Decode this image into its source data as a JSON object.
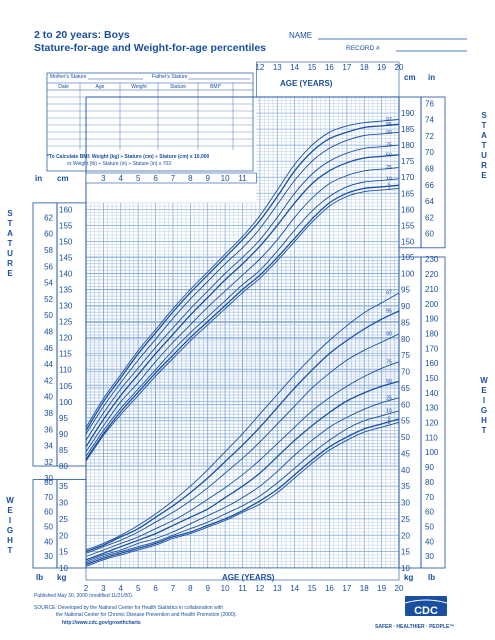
{
  "header": {
    "title": "2 to 20 years: Boys",
    "subtitle": "Stature-for-age and Weight-for-age percentiles",
    "name_label": "NAME",
    "record_label": "RECORD #"
  },
  "form": {
    "mother_label": "Mother's Stature",
    "father_label": "Father's Stature",
    "columns": [
      "Date",
      "Age",
      "Weight",
      "Stature",
      "BMI*"
    ],
    "bmi_note_1": "*To Calculate BMI: Weight (kg) ÷ Stature (cm) ÷ Stature (cm) x 10,000",
    "bmi_note_2": "or Weight (lb) ÷ Stature (in) ÷ Stature (in) x 703"
  },
  "labels": {
    "age_years": "AGE (YEARS)",
    "stature_vertical": "STATURE",
    "weight_vertical": "WEIGHT",
    "in": "in",
    "cm": "cm",
    "lb": "lb",
    "kg": "kg"
  },
  "footer": {
    "published": "Published May 30, 2000 (modified 11/21/00).",
    "source_1": "SOURCE: Developed by the National Center for Health Statistics in collaboration with",
    "source_2": "the National Center for Chronic Disease Prevention and Health Promotion (2000).",
    "url": "http://www.cdc.gov/growthcharts",
    "logo": "CDC",
    "tagline": "SAFER · HEALTHIER · PEOPLE™"
  },
  "colors": {
    "ink": "#1a4fa0",
    "grid": "#7fa6d8",
    "paper": "#ffffff"
  },
  "chart_data": [
    {
      "type": "line",
      "title": "Stature-for-age",
      "x": [
        2,
        3,
        4,
        5,
        6,
        7,
        8,
        9,
        10,
        11,
        12,
        13,
        14,
        15,
        16,
        17,
        18,
        19,
        20
      ],
      "xlim": [
        2,
        20
      ],
      "ylim": [
        80,
        195
      ],
      "ylabel": "cm",
      "series": [
        {
          "name": "97",
          "values": [
            92,
            101,
            108.5,
            116,
            122.5,
            129,
            135,
            140.5,
            146,
            151.5,
            158,
            166,
            174,
            180,
            184,
            186,
            187,
            187.5,
            188
          ]
        },
        {
          "name": "95",
          "values": [
            91,
            100,
            107.5,
            115,
            121.5,
            128,
            134,
            139.5,
            145,
            150.5,
            156.5,
            164,
            172,
            178,
            182,
            184,
            185.5,
            186,
            186.5
          ]
        },
        {
          "name": "90",
          "values": [
            90,
            98.5,
            106,
            113,
            119.5,
            126,
            132,
            137.5,
            143,
            148,
            154,
            161.5,
            169,
            175,
            179,
            181.5,
            183,
            183.5,
            184
          ]
        },
        {
          "name": "75",
          "values": [
            88,
            96.5,
            104,
            110.5,
            117,
            123,
            129,
            134.5,
            140,
            145,
            150.5,
            157.5,
            165,
            171,
            175,
            177.5,
            179,
            179.5,
            180
          ]
        },
        {
          "name": "50",
          "values": [
            86,
            94.5,
            102,
            108.5,
            115,
            121,
            127,
            132.5,
            138,
            143,
            148.5,
            155,
            162,
            168,
            172,
            174.5,
            176,
            176.5,
            177
          ]
        },
        {
          "name": "25",
          "values": [
            84.5,
            92.5,
            100,
            106,
            112.5,
            118.5,
            124,
            129.5,
            134.5,
            139.5,
            144.5,
            150.5,
            157.5,
            163.5,
            168,
            170.5,
            172,
            172.5,
            173
          ]
        },
        {
          "name": "10",
          "values": [
            83,
            91,
            98,
            104,
            110,
            116,
            121.5,
            126.5,
            131.5,
            136.5,
            141,
            147,
            153.5,
            159.5,
            164,
            167,
            168.5,
            169,
            169.5
          ]
        },
        {
          "name": "5",
          "values": [
            82,
            90,
            97,
            103,
            109,
            114.5,
            120,
            125,
            130,
            135,
            139.5,
            145,
            151,
            157,
            162,
            165,
            166.5,
            167,
            167.5
          ]
        },
        {
          "name": "3",
          "values": [
            81.5,
            89.5,
            96,
            102,
            108,
            113.5,
            119,
            124,
            129,
            134,
            138.5,
            144,
            150,
            156,
            161,
            164,
            165.5,
            166,
            166.5
          ]
        }
      ]
    },
    {
      "type": "line",
      "title": "Weight-for-age",
      "x": [
        2,
        3,
        4,
        5,
        6,
        7,
        8,
        9,
        10,
        11,
        12,
        13,
        14,
        15,
        16,
        17,
        18,
        19,
        20
      ],
      "xlim": [
        2,
        20
      ],
      "ylim": [
        10,
        105
      ],
      "ylabel": "kg",
      "series": [
        {
          "name": "97",
          "values": [
            15.5,
            17.5,
            20,
            23,
            26.5,
            30.5,
            35,
            40,
            45.5,
            51,
            57,
            63,
            69,
            74.5,
            79.5,
            84,
            88,
            91,
            94
          ]
        },
        {
          "name": "95",
          "values": [
            15,
            17,
            19.5,
            22,
            25.5,
            29,
            33,
            37.5,
            42.5,
            47.5,
            53,
            59,
            65,
            70.5,
            75.5,
            79.5,
            83,
            86,
            88.5
          ]
        },
        {
          "name": "90",
          "values": [
            14.5,
            16.5,
            18.5,
            21,
            24,
            27,
            30.5,
            34.5,
            39,
            43.5,
            48.5,
            54,
            59.5,
            65,
            69.5,
            73.5,
            76.5,
            79,
            81.5
          ]
        },
        {
          "name": "75",
          "values": [
            13.5,
            15.5,
            17.5,
            19.5,
            22,
            24.5,
            27.5,
            31,
            34.5,
            38.5,
            43,
            48,
            53,
            58,
            62,
            65.5,
            68.5,
            71,
            73
          ]
        },
        {
          "name": "50",
          "values": [
            12.5,
            14.5,
            16.5,
            18.5,
            20.5,
            23,
            25.5,
            28,
            31.5,
            35,
            39,
            44,
            49,
            53.5,
            57.5,
            61,
            63.5,
            65.5,
            67
          ]
        },
        {
          "name": "25",
          "values": [
            12,
            14,
            15.5,
            17.5,
            19,
            21,
            23.5,
            26,
            28.5,
            31.5,
            35,
            39.5,
            44.5,
            49,
            53,
            56,
            58.5,
            60.5,
            62
          ]
        },
        {
          "name": "10",
          "values": [
            11.5,
            13.5,
            15,
            16.5,
            18,
            20,
            22,
            24,
            26.5,
            29,
            32,
            36,
            40.5,
            45,
            49,
            52.5,
            55,
            56.5,
            58
          ]
        },
        {
          "name": "5",
          "values": [
            11,
            13,
            14.5,
            16,
            17.5,
            19.5,
            21,
            23,
            25,
            27.5,
            30.5,
            34,
            38.5,
            43,
            47,
            50,
            52.5,
            54,
            55.5
          ]
        },
        {
          "name": "3",
          "values": [
            10.5,
            12.5,
            14,
            15.5,
            17,
            19,
            20.5,
            22.5,
            24.5,
            27,
            29.5,
            33,
            37.5,
            42,
            46,
            49,
            51.5,
            53,
            54.5
          ]
        }
      ]
    }
  ],
  "axes": {
    "age_ticks": [
      "2",
      "3",
      "4",
      "5",
      "6",
      "7",
      "8",
      "9",
      "10",
      "11",
      "12",
      "13",
      "14",
      "15",
      "16",
      "17",
      "18",
      "19",
      "20"
    ],
    "age_ticks_top": [
      "12",
      "13",
      "14",
      "15",
      "16",
      "17",
      "18",
      "19",
      "20"
    ],
    "age_ticks_mid": [
      "3",
      "4",
      "5",
      "6",
      "7",
      "8",
      "9",
      "10",
      "11"
    ],
    "stature_cm_left": [
      "160",
      "155",
      "150",
      "145",
      "140",
      "135",
      "130",
      "125",
      "120",
      "115",
      "110",
      "105",
      "100",
      "95",
      "90",
      "85",
      "80"
    ],
    "stature_in_left": [
      "62",
      "60",
      "58",
      "56",
      "54",
      "52",
      "50",
      "48",
      "46",
      "44",
      "42",
      "40",
      "38",
      "36",
      "34",
      "32",
      "30"
    ],
    "stature_cm_right": [
      "190",
      "185",
      "180",
      "175",
      "170",
      "165",
      "160",
      "155",
      "150"
    ],
    "stature_in_right": [
      "76",
      "74",
      "72",
      "70",
      "68",
      "66",
      "64",
      "62",
      "60"
    ],
    "weight_kg_right": [
      "105",
      "100",
      "95",
      "90",
      "85",
      "80",
      "75",
      "70",
      "65",
      "60",
      "55",
      "50",
      "45",
      "40",
      "35",
      "30",
      "25",
      "20",
      "15",
      "10"
    ],
    "weight_lb_right": [
      "230",
      "220",
      "210",
      "200",
      "190",
      "180",
      "170",
      "160",
      "150",
      "140",
      "130",
      "120",
      "110",
      "100",
      "90",
      "80",
      "70",
      "60",
      "50",
      "40",
      "30"
    ],
    "weight_kg_left": [
      "35",
      "30",
      "25",
      "20",
      "15",
      "10"
    ],
    "weight_lb_left": [
      "80",
      "70",
      "60",
      "50",
      "40",
      "30"
    ]
  }
}
